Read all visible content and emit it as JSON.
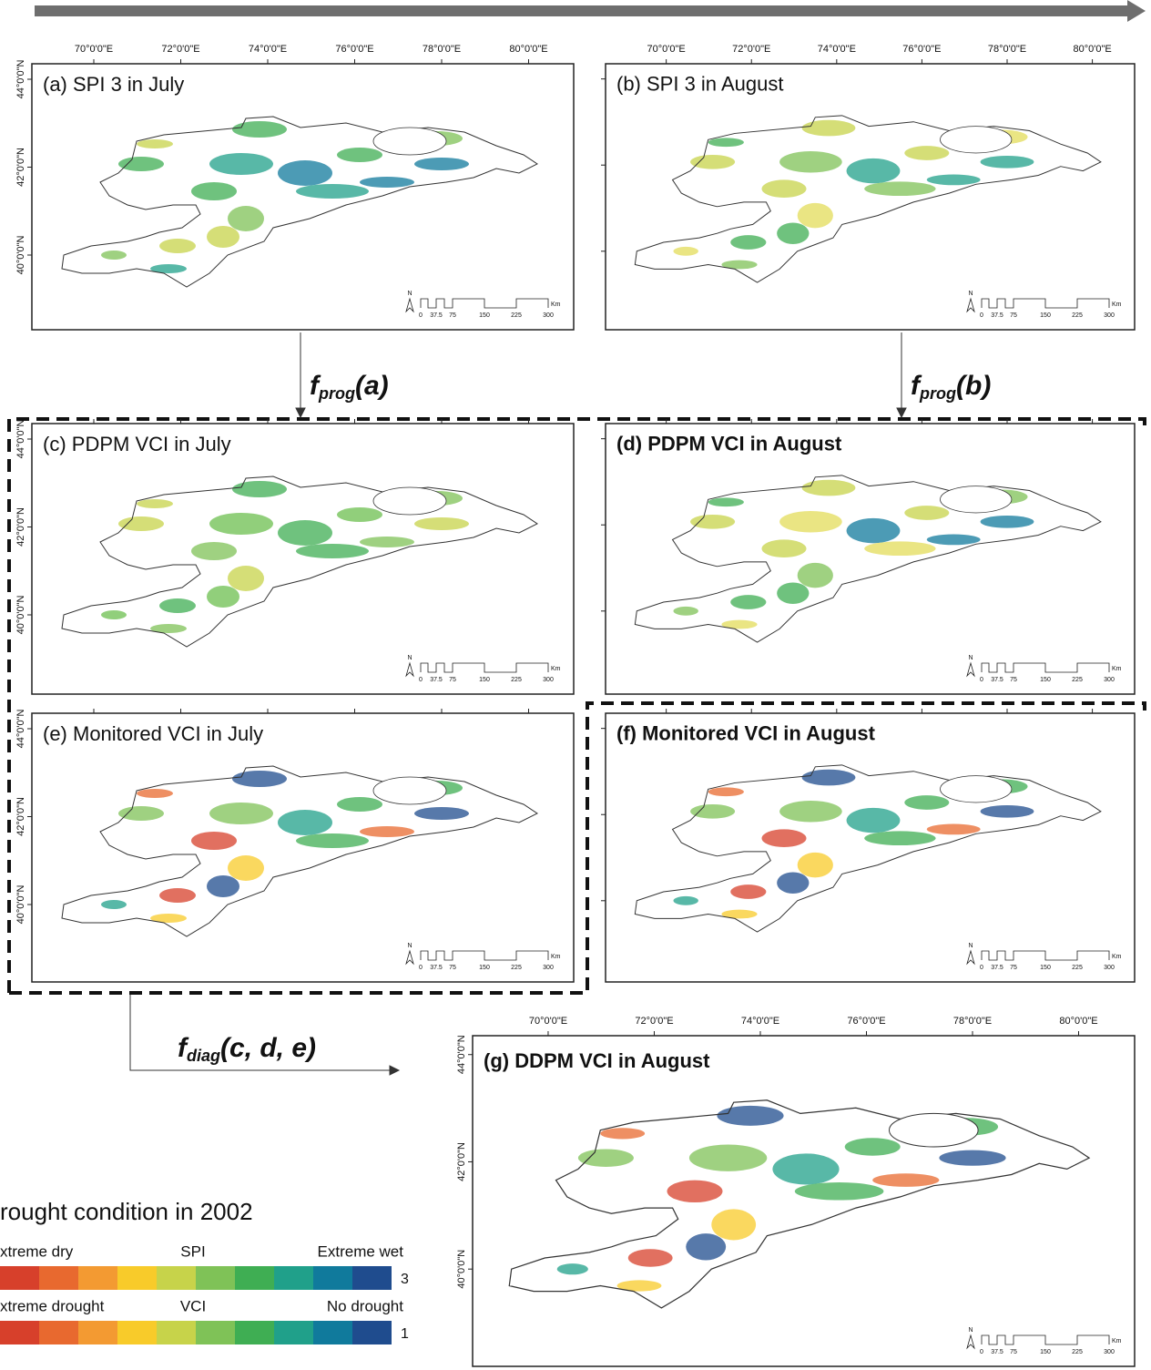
{
  "lon_ticks": [
    "70°0'0\"E",
    "72°0'0\"E",
    "74°0'0\"E",
    "76°0'0\"E",
    "78°0'0\"E",
    "80°0'0\"E"
  ],
  "lat_ticks": [
    "44°0'0\"N",
    "42°0'0\"N",
    "40°0'0\"N"
  ],
  "scale_bar": {
    "north": "N",
    "labels": [
      "0",
      "37.5",
      "75",
      "150",
      "225",
      "300"
    ],
    "unit": "Km"
  },
  "panels": [
    {
      "title": "(a) SPI 3 in July",
      "title_color": "#111111"
    },
    {
      "title": "(b) SPI 3 in August",
      "title_color": "#111111"
    },
    {
      "title": "(c) PDPM VCI in July",
      "title_color": "#111111"
    },
    {
      "title": "(d) PDPM VCI in August",
      "title_color": "#b5302a"
    },
    {
      "title": "(e) Monitored VCI in July",
      "title_color": "#111111"
    },
    {
      "title": "(f) Monitored VCI in August",
      "title_color": "#b5302a"
    },
    {
      "title": "(g) DDPM VCI in August",
      "title_color": "#b5302a"
    }
  ],
  "operators": [
    {
      "name": "f",
      "subscript": "prog",
      "args": "(a)"
    },
    {
      "name": "f",
      "subscript": "prog",
      "args": "(b)"
    },
    {
      "name": "f",
      "subscript": "diag",
      "args": "(c, d, e)"
    }
  ],
  "legend": {
    "title": "rought condition in 2002",
    "scales": [
      {
        "left": "xtreme dry",
        "middle": "SPI",
        "right": "Extreme wet",
        "end": "3"
      },
      {
        "left": "xtreme drought",
        "middle": "VCI",
        "right": "No drought",
        "end": "1"
      }
    ],
    "colors": [
      "#d7402b",
      "#e8692f",
      "#f39a32",
      "#f8cb2a",
      "#c7d34a",
      "#7fc257",
      "#3fae53",
      "#20a08a",
      "#107a9c",
      "#1f4c8e"
    ]
  }
}
